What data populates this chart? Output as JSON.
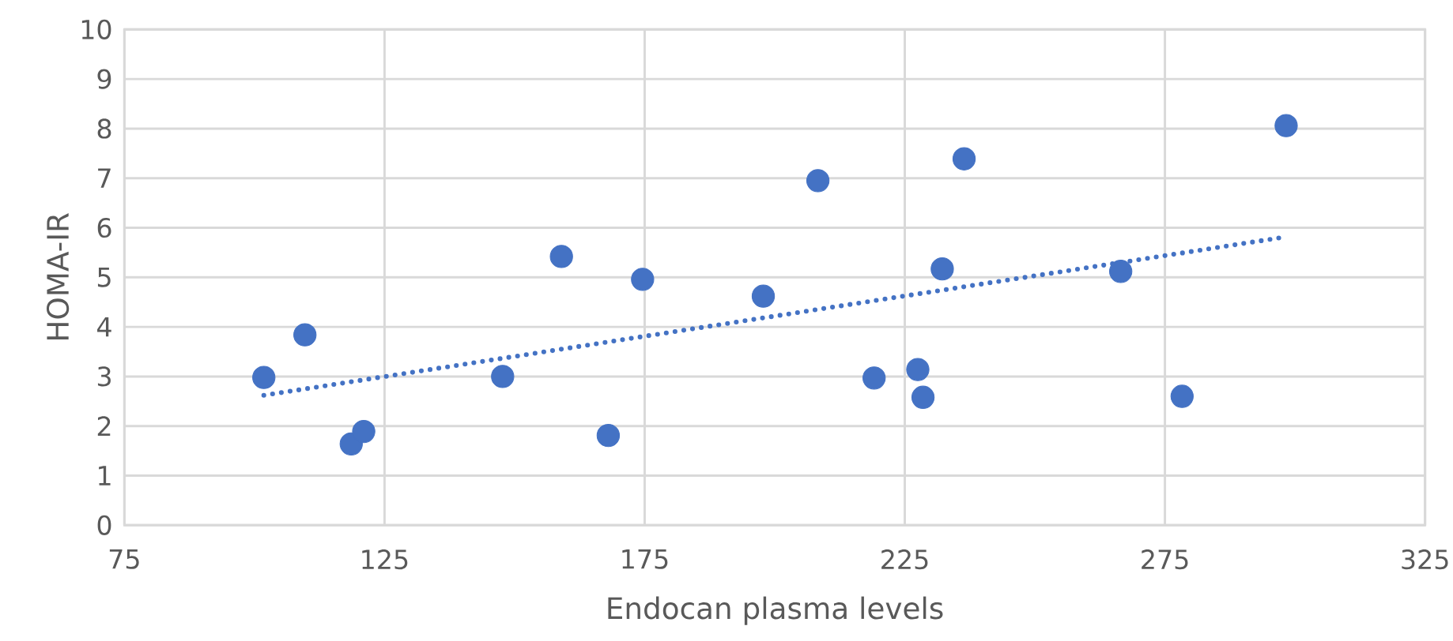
{
  "chart_data": {
    "type": "scatter",
    "xlabel": "Endocan plasma levels",
    "ylabel": "HOMA-IR",
    "xlim": [
      75,
      325
    ],
    "ylim": [
      0,
      10
    ],
    "xticks": [
      75,
      125,
      175,
      225,
      275,
      325
    ],
    "yticks": [
      0,
      1,
      2,
      3,
      4,
      5,
      6,
      7,
      8,
      9,
      10
    ],
    "grid": true,
    "series": [
      {
        "color": "#4472c4",
        "marker": "circle",
        "x": [
          101.8,
          109.7,
          118.6,
          121.0,
          147.7,
          159.0,
          168.0,
          174.6,
          197.8,
          208.3,
          219.1,
          227.5,
          228.5,
          232.2,
          236.4,
          266.5,
          278.3,
          298.3
        ],
        "values": [
          2.98,
          3.84,
          1.64,
          1.89,
          3.0,
          5.42,
          1.81,
          4.96,
          4.62,
          6.95,
          2.97,
          3.14,
          2.58,
          5.17,
          7.39,
          5.12,
          2.6,
          8.06
        ]
      },
      {
        "type": "line",
        "color": "#4472c4",
        "marker": "none",
        "line_style": "dotted",
        "x": [
          101.8,
          297.9
        ],
        "values": [
          2.62,
          5.81
        ]
      }
    ]
  }
}
